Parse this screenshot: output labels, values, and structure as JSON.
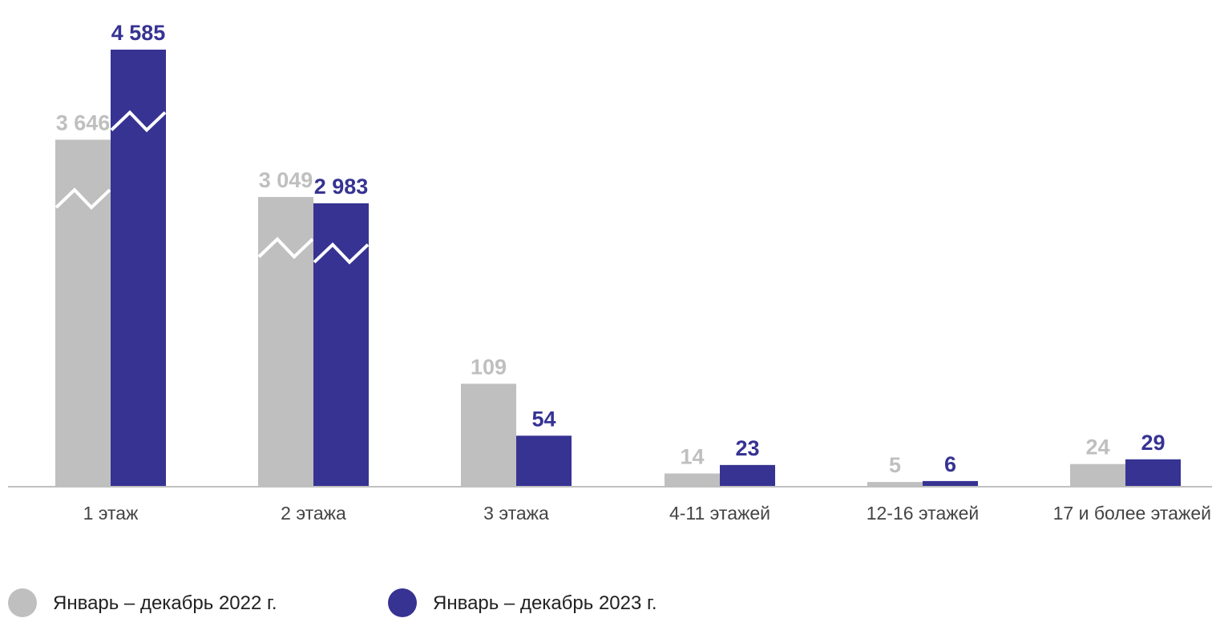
{
  "chart_data": {
    "type": "bar",
    "title": "",
    "xlabel": "",
    "ylabel": "",
    "categories": [
      "1 этаж",
      "2 этажа",
      "3 этажа",
      "4-11 этажей",
      "12-16 этажей",
      "17 и более этажей"
    ],
    "series": [
      {
        "name": "Январь – декабрь 2022 г.",
        "color": "#bfbfbf",
        "values": [
          3646,
          3049,
          109,
          14,
          5,
          24
        ],
        "labels": [
          "3 646",
          "3 049",
          "109",
          "14",
          "5",
          "24"
        ]
      },
      {
        "name": "Январь – декабрь 2023 г.",
        "color": "#363393",
        "values": [
          4585,
          2983,
          54,
          23,
          6,
          29
        ],
        "labels": [
          "4 585",
          "2 983",
          "54",
          "23",
          "6",
          "29"
        ]
      }
    ],
    "axis_break": true,
    "grid": false,
    "legend_position": "bottom-left"
  }
}
